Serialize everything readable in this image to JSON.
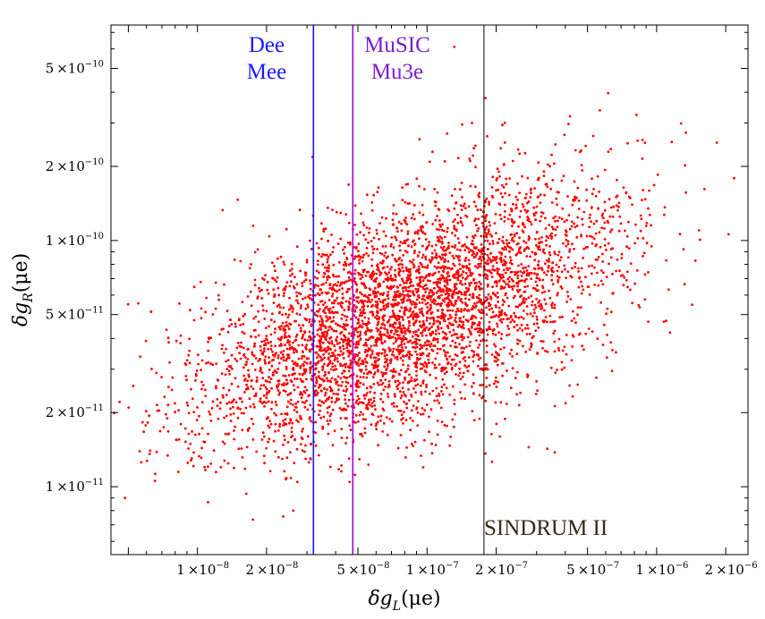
{
  "chart_data": {
    "type": "scatter",
    "title": "",
    "xlabel": {
      "prefix": "δg",
      "sub": "L",
      "suffix": "(μe)"
    },
    "ylabel": {
      "prefix": "δg",
      "sub": "R",
      "suffix": "(μe)"
    },
    "xscale": "log",
    "yscale": "log",
    "xlim": [
      4.2e-09,
      2.5e-06
    ],
    "ylim": [
      5.3e-12,
      7.5e-10
    ],
    "x_ticks": [
      {
        "value": 1e-08,
        "mant": "1",
        "exp": "−8"
      },
      {
        "value": 2e-08,
        "mant": "2",
        "exp": "−8"
      },
      {
        "value": 5e-08,
        "mant": "5",
        "exp": "−8"
      },
      {
        "value": 1e-07,
        "mant": "1",
        "exp": "−7"
      },
      {
        "value": 2e-07,
        "mant": "2",
        "exp": "−7"
      },
      {
        "value": 5e-07,
        "mant": "5",
        "exp": "−7"
      },
      {
        "value": 1e-06,
        "mant": "1",
        "exp": "−6"
      },
      {
        "value": 2e-06,
        "mant": "2",
        "exp": "−6"
      }
    ],
    "y_ticks": [
      {
        "value": 1e-11,
        "mant": "1",
        "exp": "−11"
      },
      {
        "value": 2e-11,
        "mant": "2",
        "exp": "−11"
      },
      {
        "value": 5e-11,
        "mant": "5",
        "exp": "−11"
      },
      {
        "value": 1e-10,
        "mant": "1",
        "exp": "−10"
      },
      {
        "value": 2e-10,
        "mant": "2",
        "exp": "−10"
      },
      {
        "value": 5e-10,
        "mant": "5",
        "exp": "−10"
      }
    ],
    "tick_times": "×10",
    "scatter": {
      "color": "#ff0000",
      "count": 4500,
      "seed": 20131,
      "center_x": 8e-08,
      "center_y": 5e-11,
      "sigma_log10_x": 0.45,
      "sigma_log10_y": 0.26,
      "correlation": 0.55
    },
    "limits": [
      {
        "name": "Dee Mee",
        "x": 3.2e-08,
        "color": "#1a1aff",
        "labels": [
          "Dee",
          "Mee"
        ]
      },
      {
        "name": "MuSIC Mu3e",
        "x": 4.75e-08,
        "color": "#a000e0",
        "labels": [
          "MuSIC",
          "Mu3e"
        ]
      },
      {
        "name": "SINDRUM II",
        "x": 1.77e-07,
        "color": "#000000",
        "labels": [
          "SINDRUM II"
        ]
      }
    ],
    "annotation_colors": {
      "Dee Mee": "#1a1aff",
      "MuSIC Mu3e": "#7a1fd0",
      "SINDRUM II": "#3a2a14"
    }
  }
}
